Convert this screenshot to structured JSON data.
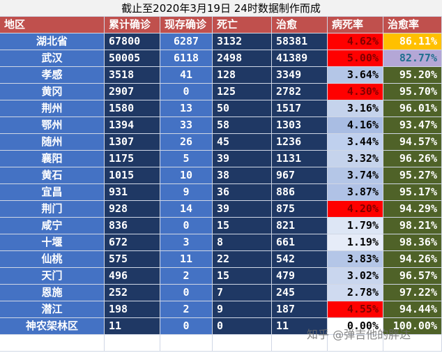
{
  "title": "截止至2020年3月19日 24时数据制作而成",
  "table": {
    "header": [
      "地区",
      "累计确诊",
      "现存确诊",
      "死亡",
      "治愈",
      "病死率",
      "治愈率"
    ],
    "rows": [
      [
        "湖北省",
        "67800",
        "6287",
        "3132",
        "58381",
        "4.62%",
        "86.11%"
      ],
      [
        "武汉",
        "50005",
        "6118",
        "2498",
        "41389",
        "5.00%",
        "82.77%"
      ],
      [
        "孝感",
        "3518",
        "41",
        "128",
        "3349",
        "3.64%",
        "95.20%"
      ],
      [
        "黄冈",
        "2907",
        "0",
        "125",
        "2782",
        "4.30%",
        "95.70%"
      ],
      [
        "荆州",
        "1580",
        "13",
        "50",
        "1517",
        "3.16%",
        "96.01%"
      ],
      [
        "鄂州",
        "1394",
        "33",
        "58",
        "1303",
        "4.16%",
        "93.47%"
      ],
      [
        "随州",
        "1307",
        "26",
        "45",
        "1236",
        "3.44%",
        "94.57%"
      ],
      [
        "襄阳",
        "1175",
        "5",
        "39",
        "1131",
        "3.32%",
        "96.26%"
      ],
      [
        "黄石",
        "1015",
        "10",
        "38",
        "967",
        "3.74%",
        "95.27%"
      ],
      [
        "宜昌",
        "931",
        "9",
        "36",
        "886",
        "3.87%",
        "95.17%"
      ],
      [
        "荆门",
        "928",
        "14",
        "39",
        "875",
        "4.20%",
        "94.29%"
      ],
      [
        "咸宁",
        "836",
        "0",
        "15",
        "821",
        "1.79%",
        "98.21%"
      ],
      [
        "十堰",
        "672",
        "3",
        "8",
        "661",
        "1.19%",
        "98.36%"
      ],
      [
        "仙桃",
        "575",
        "11",
        "22",
        "542",
        "3.83%",
        "94.26%"
      ],
      [
        "天门",
        "496",
        "2",
        "15",
        "479",
        "3.02%",
        "96.57%"
      ],
      [
        "恩施",
        "252",
        "0",
        "7",
        "245",
        "2.78%",
        "97.22%"
      ],
      [
        "潜江",
        "198",
        "2",
        "9",
        "187",
        "4.55%",
        "94.44%"
      ],
      [
        "神农架林区",
        "11",
        "0",
        "0",
        "11",
        "0.00%",
        "100.00%"
      ]
    ],
    "rate_fills": [
      [
        "#ff0000",
        "#ffc000"
      ],
      [
        "#ff0000",
        "#b4a7d6"
      ],
      [
        "#b4c6e7",
        "#4f6228"
      ],
      [
        "#ff0000",
        "#4f6228"
      ],
      [
        "#c5d3ec",
        "#4f6228"
      ],
      [
        "#a9bde3",
        "#4f6228"
      ],
      [
        "#bfd0ee",
        "#4f6228"
      ],
      [
        "#c5d3ec",
        "#4f6228"
      ],
      [
        "#b4c6e7",
        "#4f6228"
      ],
      [
        "#b0c2e6",
        "#4f6228"
      ],
      [
        "#ff0000",
        "#4f6228"
      ],
      [
        "#dde6f5",
        "#4f6228"
      ],
      [
        "#e6ecf8",
        "#4f6228"
      ],
      [
        "#b4c6e7",
        "#4f6228"
      ],
      [
        "#c9d6ee",
        "#4f6228"
      ],
      [
        "#cfdaf0",
        "#4f6228"
      ],
      [
        "#ff0000",
        "#4f6228"
      ],
      [
        "#ffffff",
        "#4f6228"
      ]
    ],
    "rate_text_colors": [
      [
        "#7f0000",
        "#ffffff"
      ],
      [
        "#7f0000",
        "#1f6f8f"
      ]
    ]
  },
  "watermark": "知乎 @弹吉他的胖达"
}
